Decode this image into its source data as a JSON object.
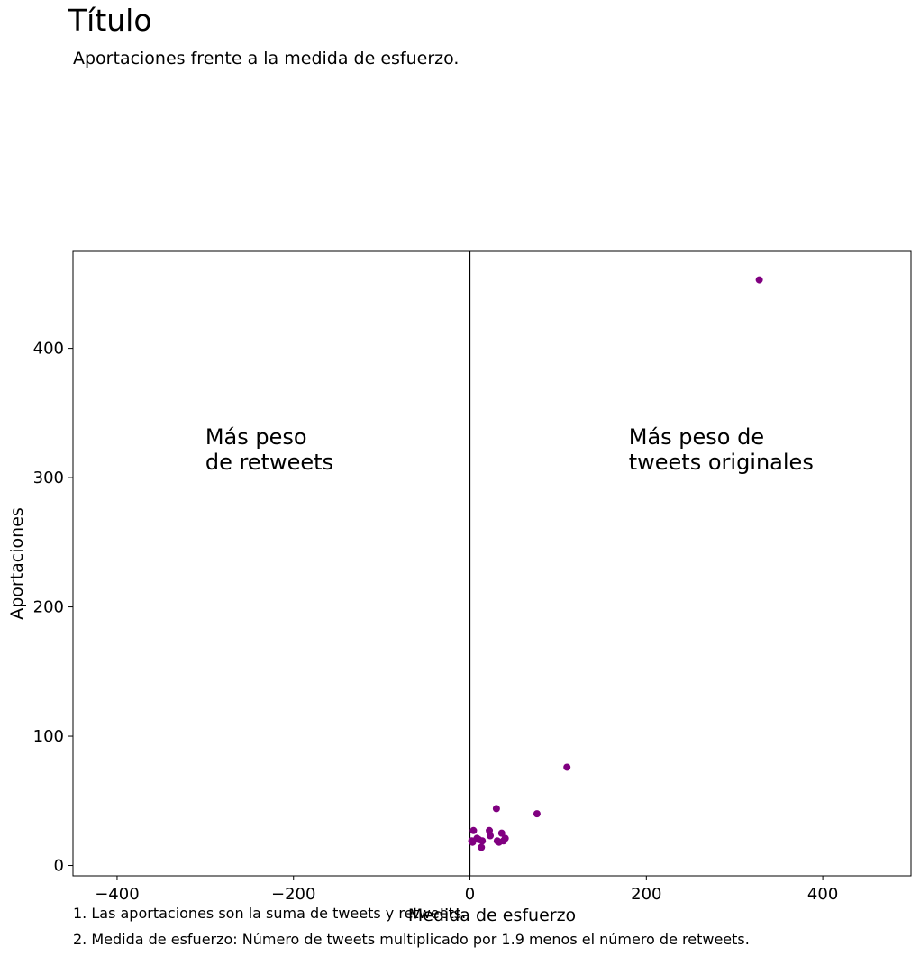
{
  "header": {
    "title": "Título",
    "subtitle": "Aportaciones frente a la medida de esfuerzo."
  },
  "notes": [
    "1. Las aportaciones son la suma de tweets y retweets.",
    "2. Medida de esfuerzo: Número de tweets multiplicado por 1.9 menos el número de retweets."
  ],
  "chart_data": {
    "type": "scatter",
    "title": "Título",
    "subtitle": "Aportaciones frente a la medida de esfuerzo.",
    "xlabel": "Medida de esfuerzo",
    "ylabel": "Aportaciones",
    "xlim": [
      -450,
      500
    ],
    "ylim": [
      -8,
      475
    ],
    "xticks": [
      -400,
      -200,
      0,
      200,
      400
    ],
    "yticks": [
      0,
      100,
      200,
      300,
      400
    ],
    "xtick_labels": [
      "−400",
      "−200",
      "0",
      "200",
      "400"
    ],
    "ytick_labels": [
      "0",
      "100",
      "200",
      "300",
      "400"
    ],
    "grid": false,
    "reference_line_x": 0,
    "point_color": "#800080",
    "annotations": [
      {
        "lines": [
          "Más peso",
          "de retweets"
        ],
        "x": -300,
        "y": 326
      },
      {
        "lines": [
          "Más peso de",
          "tweets originales"
        ],
        "x": 180,
        "y": 326
      }
    ],
    "x": [
      328,
      110,
      76,
      30,
      4,
      2,
      3,
      8,
      10,
      14,
      13,
      22,
      23,
      36,
      38,
      40,
      31,
      33
    ],
    "y": [
      453,
      76,
      40,
      44,
      27,
      19,
      18,
      21,
      20,
      19,
      14,
      27,
      23,
      25,
      19,
      21,
      19,
      18
    ]
  }
}
